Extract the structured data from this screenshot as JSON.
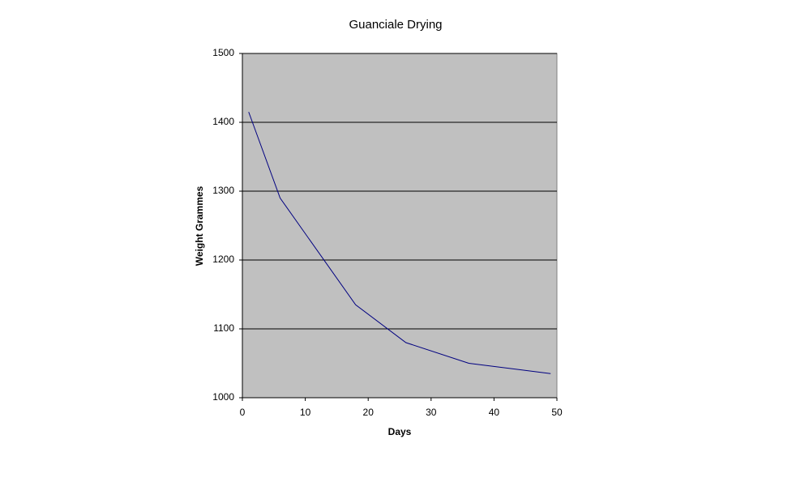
{
  "chart_data": {
    "type": "line",
    "title": "Guanciale Drying",
    "x_label": "Days",
    "y_label": "Weight Grammes",
    "x": [
      1,
      6,
      18,
      26,
      36,
      49
    ],
    "series": [
      {
        "name": "Weight",
        "color": "#000080",
        "values": [
          1415,
          1290,
          1135,
          1080,
          1050,
          1035
        ]
      }
    ],
    "xlim": [
      0,
      50
    ],
    "xticks": [
      0,
      10,
      20,
      30,
      40,
      50
    ],
    "ylim": [
      1000,
      1500
    ],
    "yticks": [
      1000,
      1100,
      1200,
      1300,
      1400,
      1500
    ],
    "grid": true,
    "background": "#c0c0c0"
  }
}
